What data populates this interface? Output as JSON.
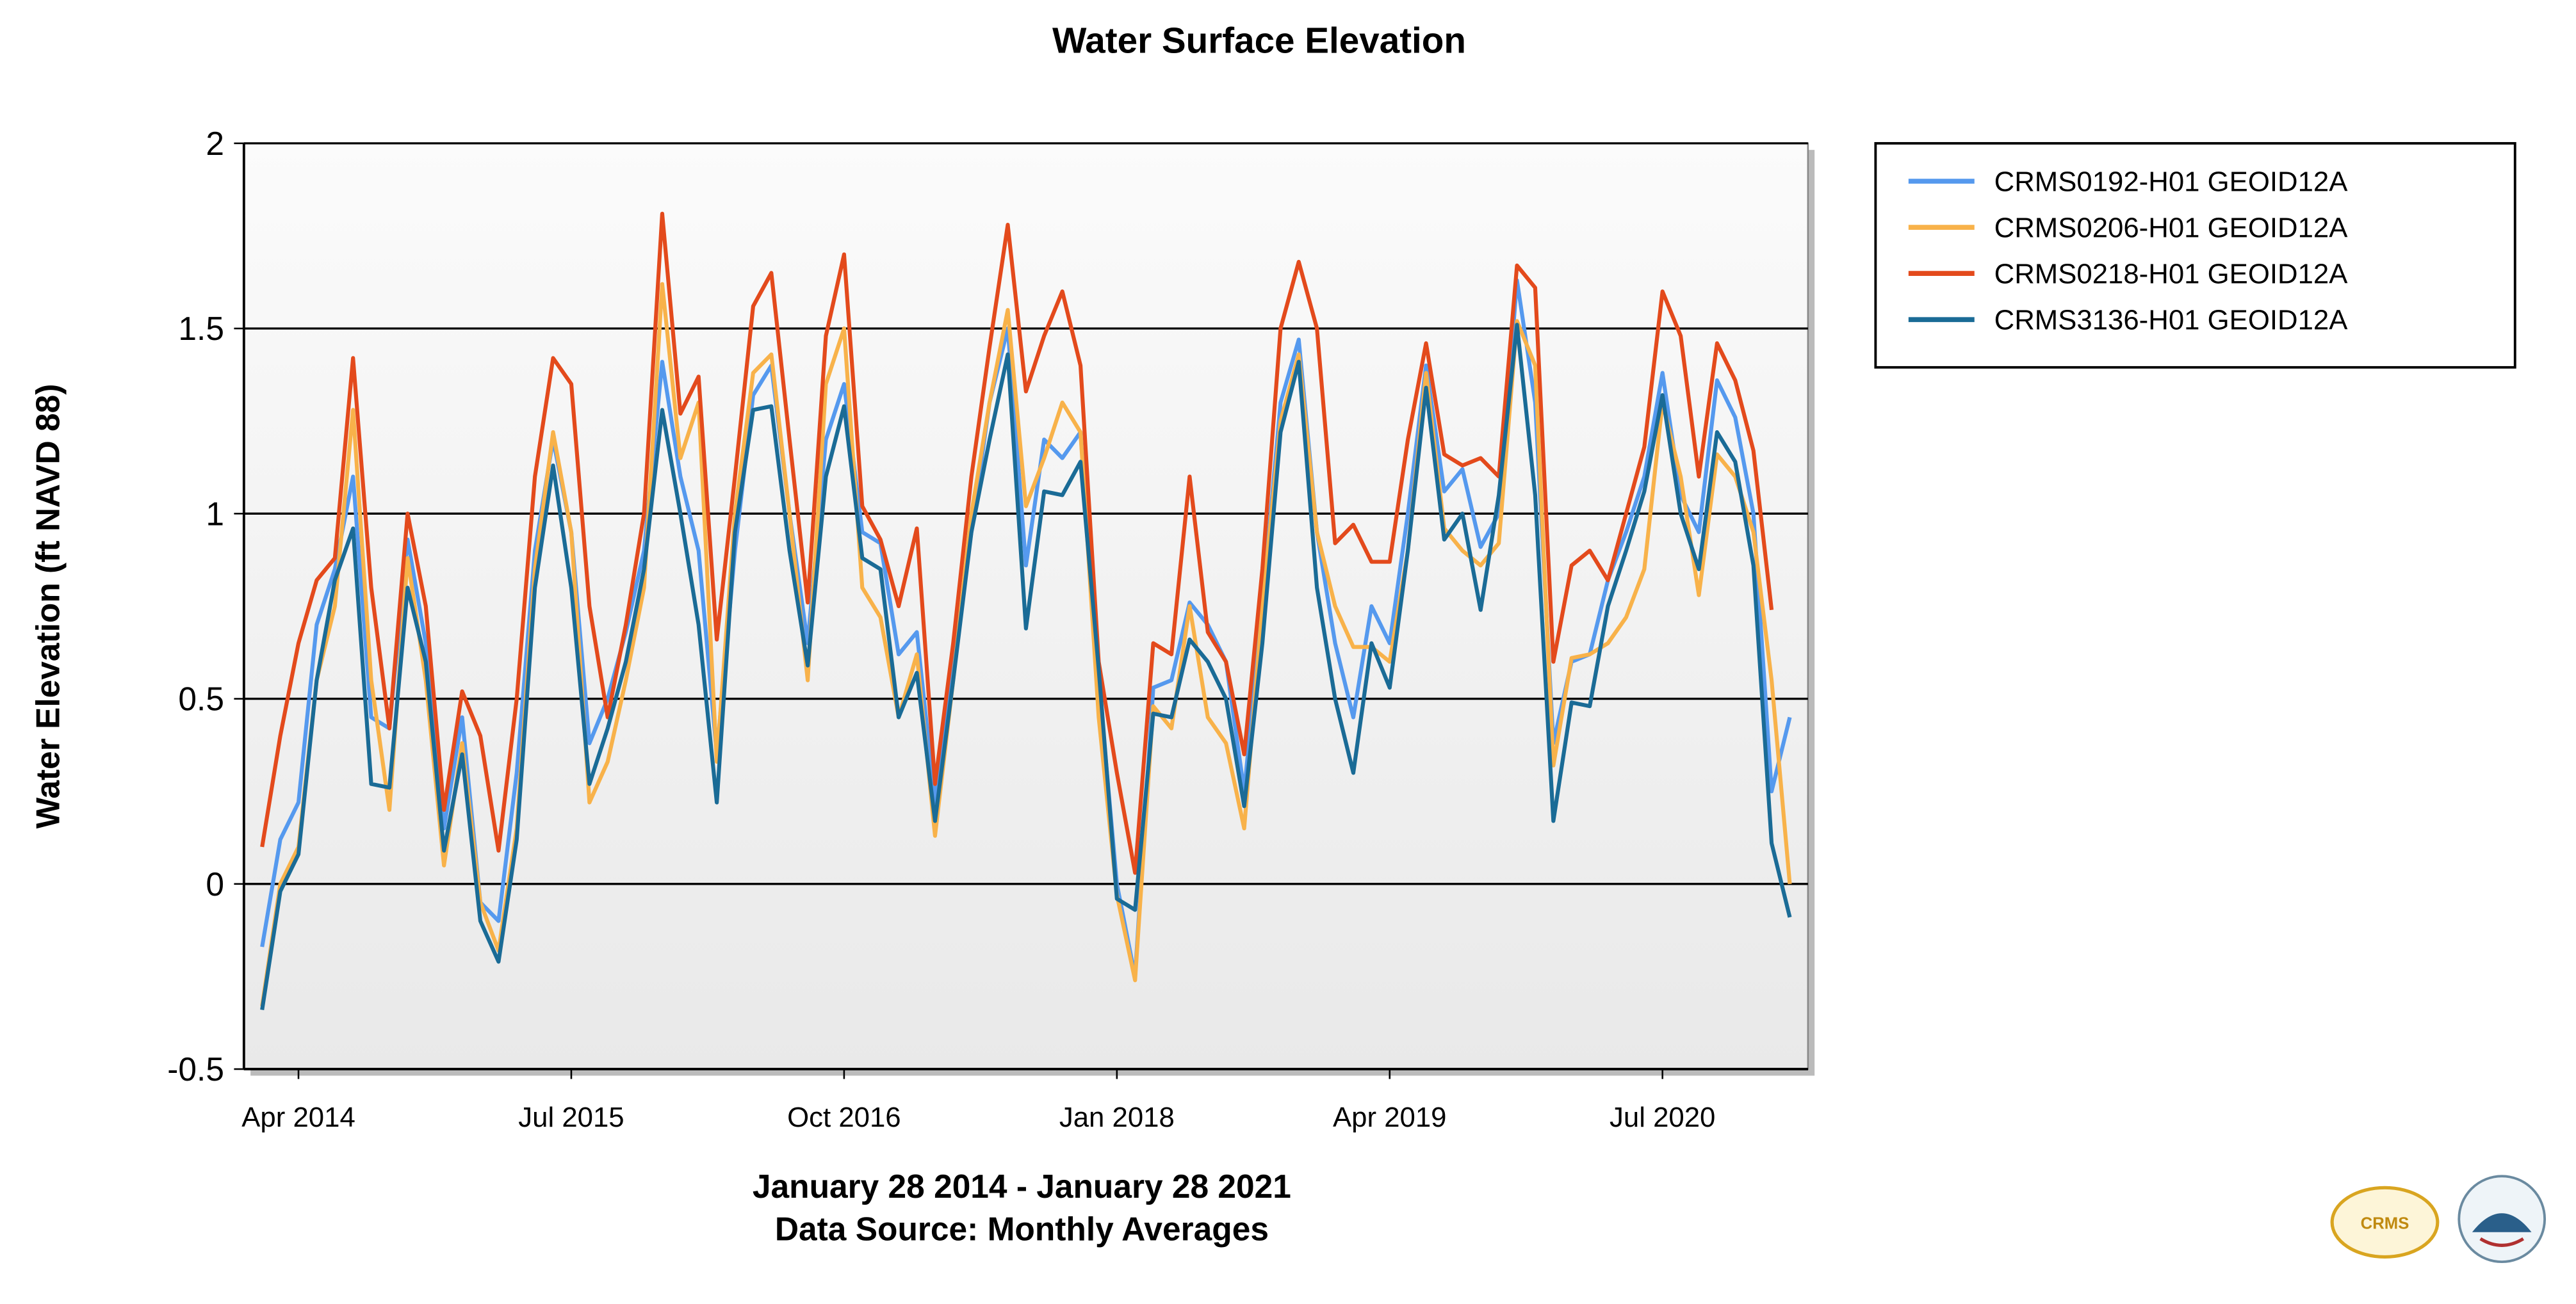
{
  "chart_data": {
    "type": "line",
    "title": "Water Surface Elevation",
    "y_label": "Water Elevation (ft NAVD 88)",
    "subtitle": [
      "January 28 2014 - January 28 2021",
      "Data Source: Monthly Averages"
    ],
    "x": [
      "2014-02",
      "2014-03",
      "2014-04",
      "2014-05",
      "2014-06",
      "2014-07",
      "2014-08",
      "2014-09",
      "2014-10",
      "2014-11",
      "2014-12",
      "2015-01",
      "2015-02",
      "2015-03",
      "2015-04",
      "2015-05",
      "2015-06",
      "2015-07",
      "2015-08",
      "2015-09",
      "2015-10",
      "2015-11",
      "2015-12",
      "2016-01",
      "2016-02",
      "2016-03",
      "2016-04",
      "2016-05",
      "2016-06",
      "2016-07",
      "2016-08",
      "2016-09",
      "2016-10",
      "2016-11",
      "2016-12",
      "2017-01",
      "2017-02",
      "2017-03",
      "2017-04",
      "2017-05",
      "2017-06",
      "2017-07",
      "2017-08",
      "2017-09",
      "2017-10",
      "2017-11",
      "2017-12",
      "2018-01",
      "2018-02",
      "2018-03",
      "2018-04",
      "2018-05",
      "2018-06",
      "2018-07",
      "2018-08",
      "2018-09",
      "2018-10",
      "2018-11",
      "2018-12",
      "2019-01",
      "2019-02",
      "2019-03",
      "2019-04",
      "2019-05",
      "2019-06",
      "2019-07",
      "2019-08",
      "2019-09",
      "2019-10",
      "2019-11",
      "2019-12",
      "2020-01",
      "2020-02",
      "2020-03",
      "2020-04",
      "2020-05",
      "2020-06",
      "2020-07",
      "2020-08",
      "2020-09",
      "2020-10",
      "2020-11",
      "2020-12",
      "2021-01",
      "2021-02"
    ],
    "xlim": [
      "2014-01",
      "2021-03"
    ],
    "xticks": [
      {
        "value": "2014-04",
        "label": "Apr 2014"
      },
      {
        "value": "2015-07",
        "label": "Jul 2015"
      },
      {
        "value": "2016-10",
        "label": "Oct 2016"
      },
      {
        "value": "2018-01",
        "label": "Jan 2018"
      },
      {
        "value": "2019-04",
        "label": "Apr 2019"
      },
      {
        "value": "2020-07",
        "label": "Jul 2020"
      }
    ],
    "ylim": [
      -0.5,
      2
    ],
    "yticks": [
      -0.5,
      0,
      0.5,
      1,
      1.5,
      2
    ],
    "grid": true,
    "legend": "right",
    "series": [
      {
        "name": "CRMS0192-H01 GEOID12A",
        "color": "#5599ee",
        "values": [
          -0.17,
          0.12,
          0.22,
          0.7,
          0.85,
          1.1,
          0.45,
          0.42,
          0.93,
          0.65,
          0.15,
          0.45,
          -0.05,
          -0.1,
          0.3,
          0.9,
          1.2,
          0.95,
          0.38,
          0.5,
          0.68,
          0.9,
          1.41,
          1.1,
          0.9,
          0.35,
          0.9,
          1.32,
          1.4,
          1.0,
          0.65,
          1.2,
          1.35,
          0.95,
          0.92,
          0.62,
          0.68,
          0.22,
          0.6,
          0.95,
          1.3,
          1.5,
          0.86,
          1.2,
          1.15,
          1.22,
          0.55,
          0.0,
          -0.25,
          0.53,
          0.55,
          0.76,
          0.7,
          0.6,
          0.25,
          0.75,
          1.3,
          1.47,
          0.95,
          0.65,
          0.45,
          0.75,
          0.65,
          1.0,
          1.4,
          1.06,
          1.12,
          0.91,
          1.0,
          1.63,
          1.3,
          0.38,
          0.6,
          0.62,
          0.82,
          0.95,
          1.1,
          1.38,
          1.05,
          0.95,
          1.36,
          1.26,
          1.0,
          0.25,
          0.45
        ]
      },
      {
        "name": "CRMS0206-H01 GEOID12A",
        "color": "#f8b24a",
        "values": [
          -0.33,
          0.0,
          0.1,
          0.55,
          0.75,
          1.28,
          0.55,
          0.2,
          0.88,
          0.55,
          0.05,
          0.38,
          -0.05,
          -0.18,
          0.15,
          0.85,
          1.22,
          0.95,
          0.22,
          0.33,
          0.55,
          0.8,
          1.62,
          1.15,
          1.3,
          0.33,
          1.0,
          1.38,
          1.43,
          1.0,
          0.55,
          1.35,
          1.5,
          0.8,
          0.72,
          0.45,
          0.62,
          0.13,
          0.55,
          1.0,
          1.3,
          1.55,
          1.02,
          1.15,
          1.3,
          1.22,
          0.45,
          -0.03,
          -0.26,
          0.48,
          0.42,
          0.75,
          0.45,
          0.38,
          0.15,
          0.75,
          1.25,
          1.43,
          0.95,
          0.75,
          0.64,
          0.64,
          0.6,
          0.9,
          1.38,
          0.96,
          0.9,
          0.86,
          0.92,
          1.52,
          1.4,
          0.32,
          0.61,
          0.62,
          0.65,
          0.72,
          0.85,
          1.3,
          1.1,
          0.78,
          1.16,
          1.1,
          0.95,
          0.55,
          0.0
        ]
      },
      {
        "name": "CRMS0218-H01 GEOID12A",
        "color": "#e34a1c",
        "values": [
          0.1,
          0.4,
          0.65,
          0.82,
          0.88,
          1.42,
          0.8,
          0.42,
          1.0,
          0.75,
          0.2,
          0.52,
          0.4,
          0.09,
          0.5,
          1.1,
          1.42,
          1.35,
          0.75,
          0.45,
          0.7,
          1.0,
          1.81,
          1.27,
          1.37,
          0.66,
          1.1,
          1.56,
          1.65,
          1.2,
          0.76,
          1.48,
          1.7,
          1.02,
          0.93,
          0.75,
          0.96,
          0.27,
          0.65,
          1.1,
          1.45,
          1.78,
          1.33,
          1.48,
          1.6,
          1.4,
          0.6,
          0.3,
          0.03,
          0.65,
          0.62,
          1.1,
          0.68,
          0.6,
          0.35,
          0.85,
          1.5,
          1.68,
          1.5,
          0.92,
          0.97,
          0.87,
          0.87,
          1.2,
          1.46,
          1.16,
          1.13,
          1.15,
          1.1,
          1.67,
          1.61,
          0.6,
          0.86,
          0.9,
          0.82,
          1.0,
          1.18,
          1.6,
          1.48,
          1.1,
          1.46,
          1.36,
          1.17,
          0.74,
          null
        ]
      },
      {
        "name": "CRMS3136-H01 GEOID12A",
        "color": "#1a6b96",
        "values": [
          -0.34,
          -0.02,
          0.08,
          0.55,
          0.82,
          0.96,
          0.27,
          0.26,
          0.8,
          0.6,
          0.09,
          0.35,
          -0.1,
          -0.21,
          0.12,
          0.8,
          1.13,
          0.8,
          0.27,
          0.42,
          0.6,
          0.85,
          1.28,
          1.0,
          0.7,
          0.22,
          0.95,
          1.28,
          1.29,
          0.9,
          0.59,
          1.1,
          1.29,
          0.88,
          0.85,
          0.45,
          0.57,
          0.17,
          0.55,
          0.95,
          1.2,
          1.43,
          0.69,
          1.06,
          1.05,
          1.14,
          0.58,
          -0.04,
          -0.07,
          0.46,
          0.45,
          0.66,
          0.6,
          0.5,
          0.21,
          0.65,
          1.22,
          1.41,
          0.8,
          0.5,
          0.3,
          0.65,
          0.53,
          0.9,
          1.34,
          0.93,
          1.0,
          0.74,
          1.05,
          1.51,
          1.05,
          0.17,
          0.49,
          0.48,
          0.75,
          0.9,
          1.06,
          1.32,
          1.0,
          0.85,
          1.22,
          1.14,
          0.86,
          0.11,
          -0.09
        ]
      }
    ]
  },
  "logo": {
    "text": "CRMS"
  }
}
